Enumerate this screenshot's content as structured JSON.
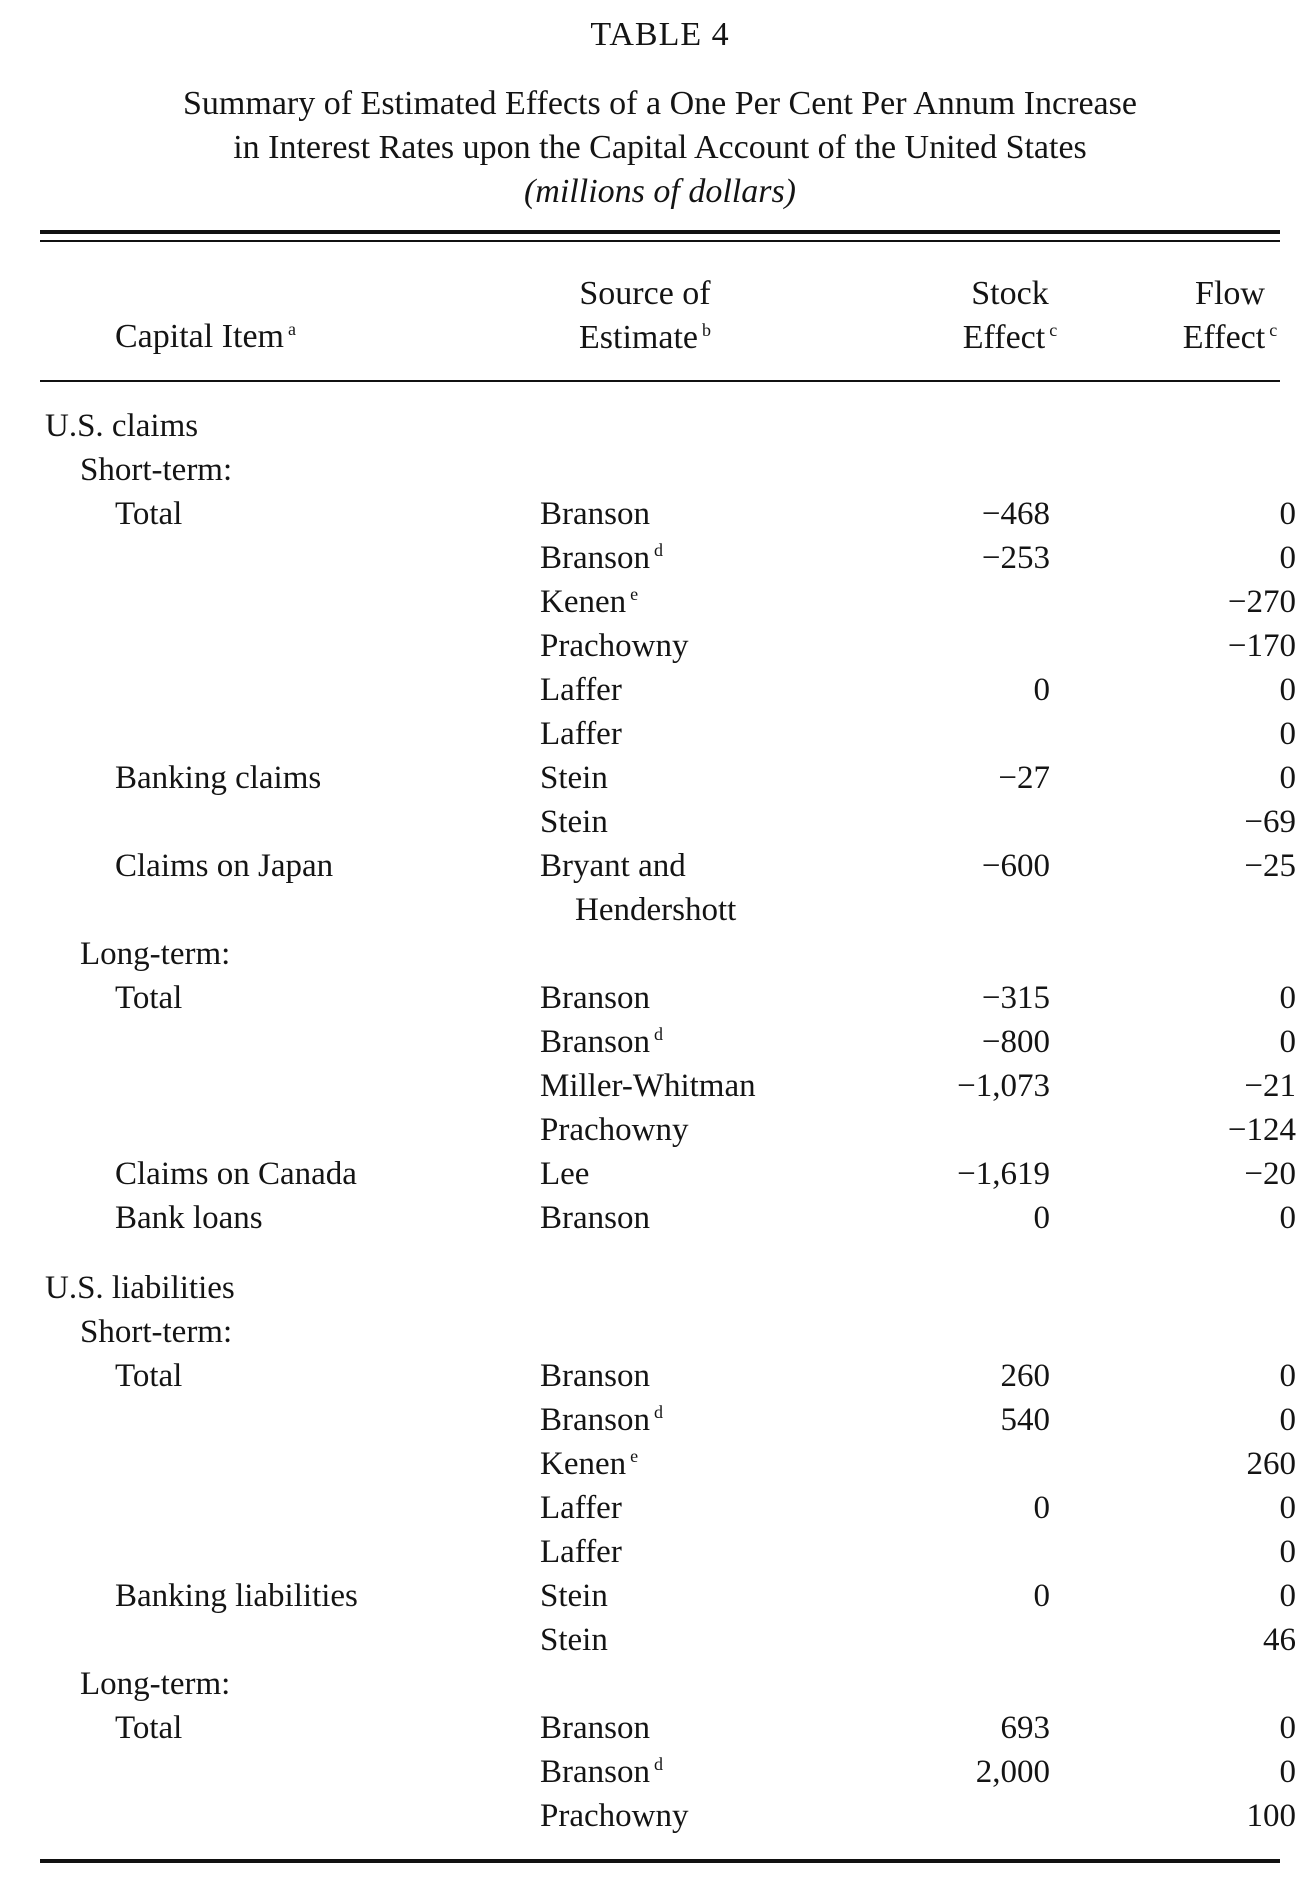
{
  "table": {
    "label": "TABLE 4",
    "title_line1": "Summary of Estimated Effects of a One Per Cent Per Annum Increase",
    "title_line2": "in Interest Rates upon the Capital Account of the United States",
    "units": "(millions of dollars)",
    "headers": {
      "item": "Capital Item",
      "item_note": "a",
      "source_line1": "Source of",
      "source_line2": "Estimate",
      "source_note": "b",
      "stock_line1": "Stock",
      "stock_line2": "Effect",
      "stock_note": "c",
      "flow_line1": "Flow",
      "flow_line2": "Effect",
      "flow_note": "c"
    },
    "rows": [
      {
        "kind": "section",
        "item": "U.S. claims"
      },
      {
        "kind": "sub",
        "item": "Short-term:"
      },
      {
        "kind": "data",
        "item": "Total",
        "source": "Branson",
        "note": "",
        "stock": "−468",
        "flow": "0"
      },
      {
        "kind": "data",
        "item": "",
        "source": "Branson",
        "note": "d",
        "stock": "−253",
        "flow": "0"
      },
      {
        "kind": "data",
        "item": "",
        "source": "Kenen",
        "note": "e",
        "stock": "",
        "flow": "−270"
      },
      {
        "kind": "data",
        "item": "",
        "source": "Prachowny",
        "note": "",
        "stock": "",
        "flow": "−170"
      },
      {
        "kind": "data",
        "item": "",
        "source": "Laffer",
        "note": "",
        "stock": "0",
        "flow": "0"
      },
      {
        "kind": "data",
        "item": "",
        "source": "Laffer",
        "note": "",
        "stock": "",
        "flow": "0"
      },
      {
        "kind": "data",
        "item": "Banking claims",
        "source": "Stein",
        "note": "",
        "stock": "−27",
        "flow": "0"
      },
      {
        "kind": "data",
        "item": "",
        "source": "Stein",
        "note": "",
        "stock": "",
        "flow": "−69"
      },
      {
        "kind": "data",
        "item": "Claims on Japan",
        "source": "Bryant and",
        "note": "",
        "stock": "−600",
        "flow": "−25"
      },
      {
        "kind": "cont",
        "item": "",
        "source": "Hendershott",
        "note": "",
        "stock": "",
        "flow": ""
      },
      {
        "kind": "sub",
        "item": "Long-term:"
      },
      {
        "kind": "data",
        "item": "Total",
        "source": "Branson",
        "note": "",
        "stock": "−315",
        "flow": "0"
      },
      {
        "kind": "data",
        "item": "",
        "source": "Branson",
        "note": "d",
        "stock": "−800",
        "flow": "0"
      },
      {
        "kind": "data",
        "item": "",
        "source": "Miller-Whitman",
        "note": "",
        "stock": "−1,073",
        "flow": "−21"
      },
      {
        "kind": "data",
        "item": "",
        "source": "Prachowny",
        "note": "",
        "stock": "",
        "flow": "−124"
      },
      {
        "kind": "data",
        "item": "Claims on Canada",
        "source": "Lee",
        "note": "",
        "stock": "−1,619",
        "flow": "−20"
      },
      {
        "kind": "data",
        "item": "Bank loans",
        "source": "Branson",
        "note": "",
        "stock": "0",
        "flow": "0"
      },
      {
        "kind": "section",
        "item": "U.S. liabilities"
      },
      {
        "kind": "sub",
        "item": "Short-term:"
      },
      {
        "kind": "data",
        "item": "Total",
        "source": "Branson",
        "note": "",
        "stock": "260",
        "flow": "0"
      },
      {
        "kind": "data",
        "item": "",
        "source": "Branson",
        "note": "d",
        "stock": "540",
        "flow": "0"
      },
      {
        "kind": "data",
        "item": "",
        "source": "Kenen",
        "note": "e",
        "stock": "",
        "flow": "260"
      },
      {
        "kind": "data",
        "item": "",
        "source": "Laffer",
        "note": "",
        "stock": "0",
        "flow": "0"
      },
      {
        "kind": "data",
        "item": "",
        "source": "Laffer",
        "note": "",
        "stock": "",
        "flow": "0"
      },
      {
        "kind": "data",
        "item": "Banking liabilities",
        "source": "Stein",
        "note": "",
        "stock": "0",
        "flow": "0"
      },
      {
        "kind": "data",
        "item": "",
        "source": "Stein",
        "note": "",
        "stock": "",
        "flow": "46"
      },
      {
        "kind": "sub",
        "item": "Long-term:"
      },
      {
        "kind": "data",
        "item": "Total",
        "source": "Branson",
        "note": "",
        "stock": "693",
        "flow": "0"
      },
      {
        "kind": "data",
        "item": "",
        "source": "Branson",
        "note": "d",
        "stock": "2,000",
        "flow": "0"
      },
      {
        "kind": "data",
        "item": "",
        "source": "Prachowny",
        "note": "",
        "stock": "",
        "flow": "100"
      }
    ]
  }
}
